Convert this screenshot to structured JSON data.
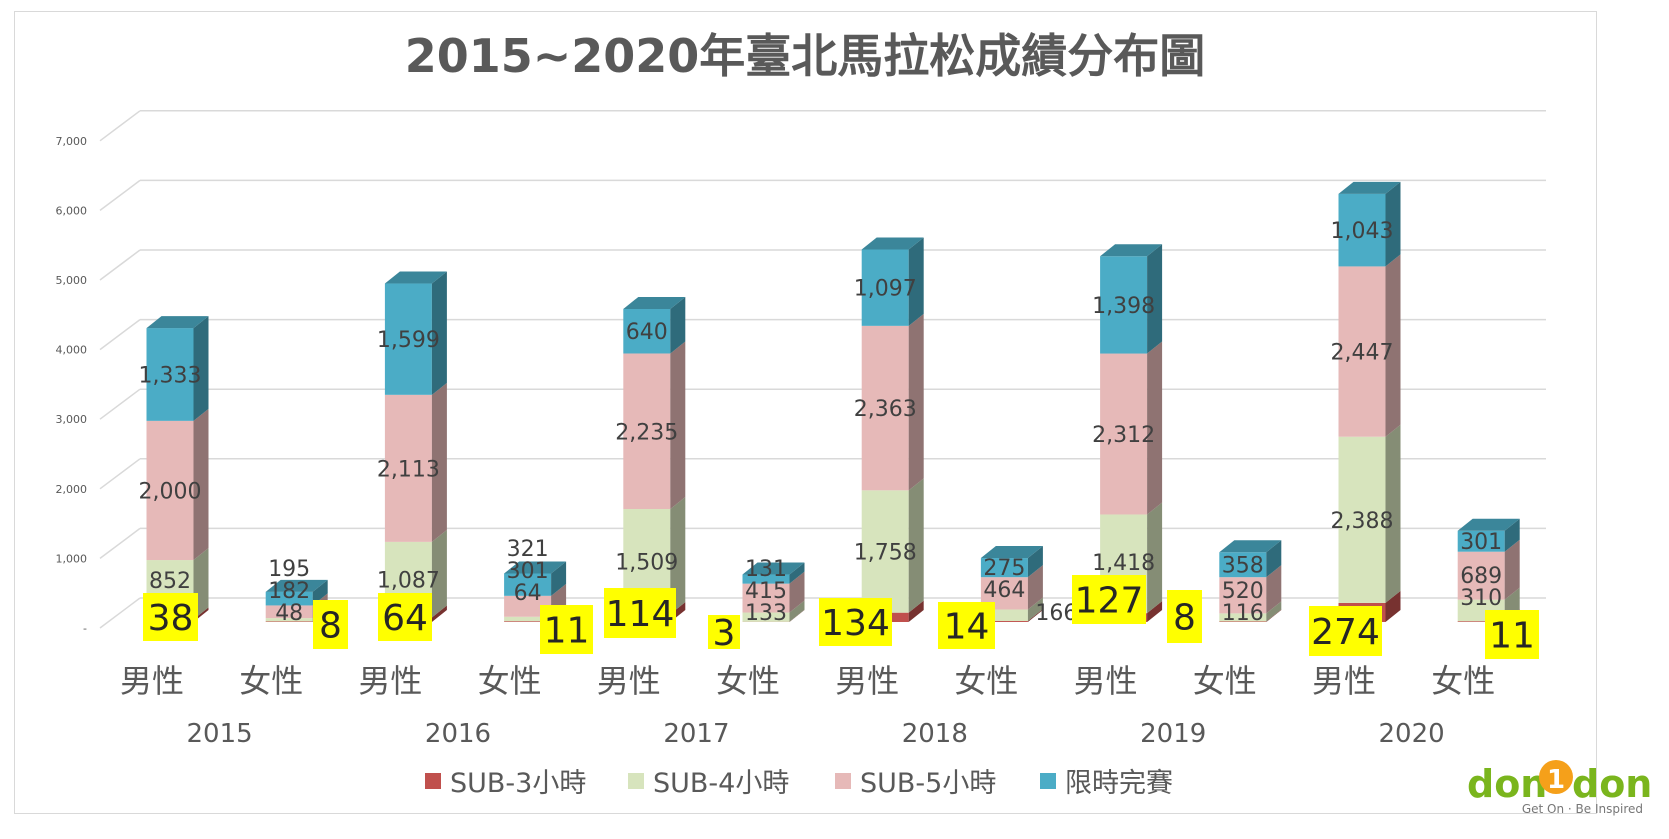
{
  "chart_data": {
    "type": "bar",
    "stacked": true,
    "style": "3d-stacked-column",
    "title": "2015~2020年臺北馬拉松成績分布圖",
    "xlabel": "",
    "ylabel": "",
    "ylim": [
      0,
      7000
    ],
    "yticks": [
      "-",
      "1,000",
      "2,000",
      "3,000",
      "4,000",
      "5,000",
      "6,000",
      "7,000"
    ],
    "grid": true,
    "legend_position": "bottom",
    "groups": [
      "2015",
      "2016",
      "2017",
      "2018",
      "2019",
      "2020"
    ],
    "subcategories": [
      "男性",
      "女性"
    ],
    "categories": [
      "2015 男性",
      "2015 女性",
      "2016 男性",
      "2016 女性",
      "2017 男性",
      "2017 女性",
      "2018 男性",
      "2018 女性",
      "2019 男性",
      "2019 女性",
      "2020 男性",
      "2020 女性"
    ],
    "series": [
      {
        "name": "SUB-3小時",
        "color": "#c0504d",
        "values": [
          38,
          8,
          64,
          11,
          114,
          3,
          134,
          14,
          127,
          8,
          274,
          11
        ],
        "labels": [
          "38",
          "8",
          "64",
          "11",
          "114",
          "3",
          "134",
          "14",
          "127",
          "8",
          "274",
          "11"
        ],
        "label_highlight": "#ffff00"
      },
      {
        "name": "SUB-4小時",
        "color": "#d7e4bd",
        "values": [
          852,
          48,
          1087,
          64,
          1509,
          133,
          1758,
          166,
          1418,
          116,
          2388,
          310
        ],
        "labels": [
          "852",
          "48",
          "1,087",
          "64",
          "1,509",
          "133",
          "1,758",
          "166",
          "1,418",
          "116",
          "2,388",
          "310"
        ]
      },
      {
        "name": "SUB-5小時",
        "color": "#e6b9b8",
        "values": [
          2000,
          182,
          2113,
          301,
          2235,
          415,
          2363,
          464,
          2312,
          520,
          2447,
          689
        ],
        "labels": [
          "2,000",
          "182",
          "2,113",
          "301",
          "2,235",
          "415",
          "2,363",
          "464",
          "2,312",
          "520",
          "2,447",
          "689"
        ]
      },
      {
        "name": "限時完賽",
        "color": "#4bacc6",
        "values": [
          1333,
          195,
          1599,
          321,
          640,
          131,
          1097,
          275,
          1398,
          358,
          1043,
          301
        ],
        "labels": [
          "1,333",
          "195",
          "1,599",
          "321",
          "640",
          "131",
          "1,097",
          "275",
          "1,398",
          "358",
          "1,043",
          "301"
        ]
      }
    ]
  },
  "logo": {
    "text": "don1don",
    "tagline": "Get On · Be Inspired"
  }
}
